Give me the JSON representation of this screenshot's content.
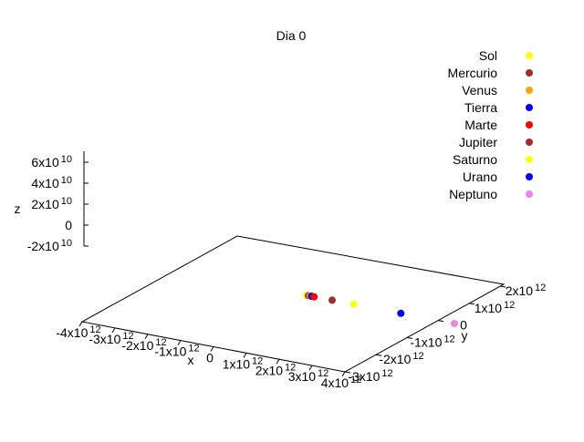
{
  "chart_data": {
    "type": "scatter",
    "title": "Dia 0",
    "xlabel": "x",
    "ylabel": "y",
    "zlabel": "z",
    "xlim": [
      -4000000000000.0,
      4000000000000.0
    ],
    "ylim": [
      -3000000000000.0,
      2000000000000.0
    ],
    "zlim": [
      -20000000000.0,
      60000000000.0
    ],
    "grid": false,
    "legend_placement": "top-right",
    "x_ticks": [
      {
        "value": -4000000000000.0,
        "base": "-4x10",
        "exp": "12"
      },
      {
        "value": -3000000000000.0,
        "base": "-3x10",
        "exp": "12"
      },
      {
        "value": -2000000000000.0,
        "base": "-2x10",
        "exp": "12"
      },
      {
        "value": -1000000000000.0,
        "base": "-1x10",
        "exp": "12"
      },
      {
        "value": 0,
        "base": "0",
        "exp": ""
      },
      {
        "value": 1000000000000.0,
        "base": "1x10",
        "exp": "12"
      },
      {
        "value": 2000000000000.0,
        "base": "2x10",
        "exp": "12"
      },
      {
        "value": 3000000000000.0,
        "base": "3x10",
        "exp": "12"
      },
      {
        "value": 4000000000000.0,
        "base": "4x10",
        "exp": "12"
      }
    ],
    "y_ticks": [
      {
        "value": -3000000000000.0,
        "base": "-3x10",
        "exp": "12"
      },
      {
        "value": -2000000000000.0,
        "base": "-2x10",
        "exp": "12"
      },
      {
        "value": -1000000000000.0,
        "base": "-1x10",
        "exp": "12"
      },
      {
        "value": 0,
        "base": "0",
        "exp": ""
      },
      {
        "value": 1000000000000.0,
        "base": "1x10",
        "exp": "12"
      },
      {
        "value": 2000000000000.0,
        "base": "2x10",
        "exp": "12"
      }
    ],
    "z_ticks": [
      {
        "value": -20000000000.0,
        "base": "-2x10",
        "exp": "10"
      },
      {
        "value": 0,
        "base": "0",
        "exp": ""
      },
      {
        "value": 20000000000.0,
        "base": "2x10",
        "exp": "10"
      },
      {
        "value": 40000000000.0,
        "base": "4x10",
        "exp": "10"
      },
      {
        "value": 60000000000.0,
        "base": "6x10",
        "exp": "10"
      }
    ],
    "series": [
      {
        "name": "Sol",
        "color": "#ffff00",
        "x": 0,
        "y": 0,
        "z": 0
      },
      {
        "name": "Mercurio",
        "color": "#a52a2a",
        "x": 57000000000.0,
        "y": 0,
        "z": 0
      },
      {
        "name": "Venus",
        "color": "#ffa500",
        "x": 108000000000.0,
        "y": 0,
        "z": 0
      },
      {
        "name": "Tierra",
        "color": "#0000ff",
        "x": 150000000000.0,
        "y": 0,
        "z": 0
      },
      {
        "name": "Marte",
        "color": "#ff0000",
        "x": 228000000000.0,
        "y": 0,
        "z": 0
      },
      {
        "name": "Jupiter",
        "color": "#a52a2a",
        "x": 778000000000.0,
        "y": 0,
        "z": 0
      },
      {
        "name": "Saturno",
        "color": "#ffff00",
        "x": 1430000000000.0,
        "y": 0,
        "z": 0
      },
      {
        "name": "Urano",
        "color": "#0000ff",
        "x": 2870000000000.0,
        "y": 0,
        "z": 0
      },
      {
        "name": "Neptuno",
        "color": "#ee82ee",
        "x": 4500000000000.0,
        "y": 0,
        "z": 0
      }
    ]
  }
}
